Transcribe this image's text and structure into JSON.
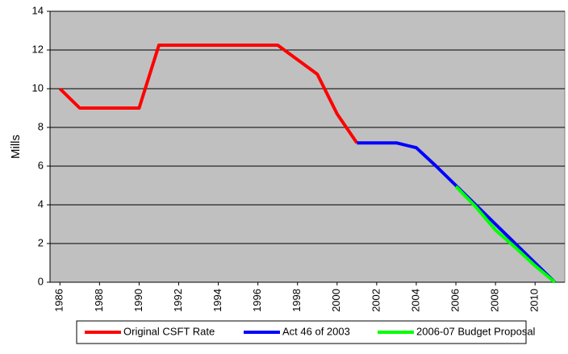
{
  "chart_data": {
    "type": "line",
    "ylabel": "Mills",
    "x": [
      1986,
      1987,
      1988,
      1989,
      1990,
      1991,
      1992,
      1993,
      1994,
      1995,
      1996,
      1997,
      1998,
      1999,
      2000,
      2001,
      2002,
      2003,
      2004,
      2005,
      2006,
      2007,
      2008,
      2009,
      2010,
      2011
    ],
    "series": [
      {
        "name": "Original CSFT Rate",
        "color": "#ff0000",
        "values": [
          10,
          9,
          9,
          9,
          9,
          12.25,
          12.25,
          12.25,
          12.25,
          12.25,
          12.25,
          12.25,
          11.5,
          10.75,
          8.7,
          7.2,
          null,
          null,
          null,
          null,
          null,
          null,
          null,
          null,
          null,
          null
        ]
      },
      {
        "name": "Act 46 of 2003",
        "color": "#0000ff",
        "values": [
          null,
          null,
          null,
          null,
          null,
          null,
          null,
          null,
          null,
          null,
          null,
          null,
          null,
          null,
          null,
          7.2,
          7.2,
          7.2,
          6.95,
          6,
          5,
          4,
          3,
          2,
          1,
          0
        ]
      },
      {
        "name": "2006-07 Budget Proposal",
        "color": "#00ff00",
        "values": [
          null,
          null,
          null,
          null,
          null,
          null,
          null,
          null,
          null,
          null,
          null,
          null,
          null,
          null,
          null,
          null,
          null,
          null,
          null,
          null,
          4.95,
          3.9,
          2.7,
          1.8,
          0.85,
          0
        ]
      }
    ],
    "xlim": [
      1985.5,
      2011.5
    ],
    "xticks": [
      1986,
      1988,
      1990,
      1992,
      1994,
      1996,
      1998,
      2000,
      2002,
      2004,
      2006,
      2008,
      2010
    ],
    "ylim": [
      0,
      14
    ],
    "yticks": [
      0,
      2,
      4,
      6,
      8,
      10,
      12,
      14
    ],
    "grid": true,
    "legend": "bottom",
    "background": "#c0c0c0"
  }
}
